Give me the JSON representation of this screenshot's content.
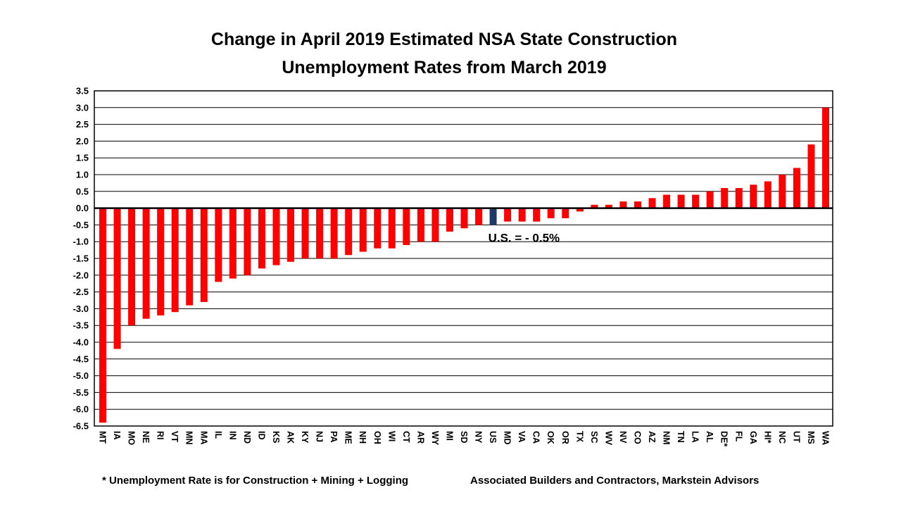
{
  "title": {
    "line1": "Change in April 2019 Estimated NSA State Construction",
    "line2": "Unemployment Rates from March 2019"
  },
  "annotation": {
    "us_label": "U.S. = - 0.5%"
  },
  "footnote": "* Unemployment Rate is for Construction + Mining + Logging",
  "source": "Associated Builders and Contractors, Markstein Advisors",
  "colors": {
    "bar": "#FF0000",
    "us_bar": "#1F3864",
    "grid": "#000000",
    "zero_line": "#000000",
    "text": "#000000"
  },
  "chart_data": {
    "type": "bar",
    "title": "Change in April 2019 Estimated NSA State Construction Unemployment Rates from March 2019",
    "xlabel": "",
    "ylabel": "",
    "ylim": [
      -6.5,
      3.5
    ],
    "ytick_step": 0.5,
    "grid": true,
    "legend": "none",
    "highlight_category": "US",
    "annotation": "U.S. = - 0.5%",
    "categories": [
      "MT",
      "IA",
      "MO",
      "NE",
      "RI",
      "VT",
      "MN",
      "MA",
      "IL",
      "IN",
      "ND",
      "ID",
      "KS",
      "AK",
      "KY",
      "NJ",
      "PA",
      "ME",
      "NH",
      "OH",
      "WI",
      "CT",
      "AR",
      "WY",
      "MI",
      "SD",
      "NY",
      "US",
      "MD",
      "VA",
      "CA",
      "OK",
      "OR",
      "TX",
      "SC",
      "WV",
      "NV",
      "CO",
      "AZ",
      "NM",
      "TN",
      "LA",
      "AL",
      "DE*",
      "FL",
      "GA",
      "HI*",
      "NC",
      "UT",
      "MS",
      "WA"
    ],
    "values": [
      -6.4,
      -4.2,
      -3.5,
      -3.3,
      -3.2,
      -3.1,
      -2.9,
      -2.8,
      -2.2,
      -2.1,
      -2.0,
      -1.8,
      -1.7,
      -1.6,
      -1.5,
      -1.5,
      -1.5,
      -1.4,
      -1.3,
      -1.2,
      -1.2,
      -1.1,
      -1.0,
      -1.0,
      -0.7,
      -0.6,
      -0.5,
      -0.5,
      -0.4,
      -0.4,
      -0.4,
      -0.3,
      -0.3,
      -0.1,
      0.1,
      0.1,
      0.2,
      0.2,
      0.3,
      0.4,
      0.4,
      0.4,
      0.5,
      0.6,
      0.6,
      0.7,
      0.8,
      1.0,
      1.2,
      1.9,
      3.0
    ]
  }
}
